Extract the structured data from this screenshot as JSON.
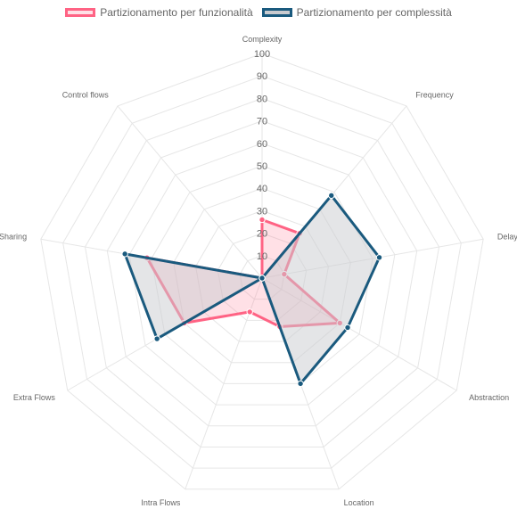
{
  "chart_data": {
    "type": "radar",
    "axes": [
      "Complexity",
      "Frequency",
      "Delay",
      "Abstraction",
      "Location",
      "Intra Flows",
      "Extra Flows",
      "Sharing",
      "Control flows"
    ],
    "ticks": [
      "10",
      "20",
      "30",
      "40",
      "50",
      "60",
      "70",
      "80",
      "90",
      "100"
    ],
    "r_range": [
      0,
      100
    ],
    "grid": true,
    "legend_position": "top",
    "series": [
      {
        "name": "Partizionamento per funzionalità",
        "values": [
          26,
          26,
          10,
          40,
          23,
          16,
          40,
          52,
          0
        ],
        "color": "#ff6384",
        "fill": "rgba(255,99,132,0.2)"
      },
      {
        "name": "Partizionamento per complessità",
        "values": [
          0,
          48,
          53,
          44,
          50,
          0,
          54,
          62,
          0
        ],
        "color": "#1a5a7e",
        "fill": "rgba(201,203,207,0.5)"
      }
    ]
  }
}
